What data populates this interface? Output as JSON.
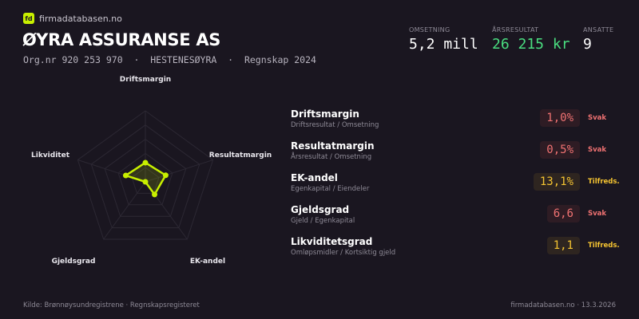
{
  "brand": {
    "logo": "fd",
    "site": "firmadatabasen.no"
  },
  "company": {
    "name": "ØYRA ASSURANSE AS",
    "subtitle": "Org.nr 920 253 970  ·  HESTENESØYRA  ·  Regnskap 2024"
  },
  "kpis": [
    {
      "label": "OMSETNING",
      "value": "5,2 mill",
      "color": "#ffffff"
    },
    {
      "label": "ÅRSRESULTAT",
      "value": "26 215 kr",
      "color": "#4ade80"
    },
    {
      "label": "ANSATTE",
      "value": "9",
      "color": "#ffffff"
    }
  ],
  "chart_data": {
    "type": "radar",
    "axes": [
      "Driftsmargin",
      "Resultatmargin",
      "EK-andel",
      "Gjeldsgrad",
      "Likviditet"
    ],
    "values": [
      0.27,
      0.3,
      0.22,
      0.0,
      0.29
    ],
    "range": [
      0,
      1
    ],
    "rings": 5,
    "color": "#c8f000"
  },
  "ratios": [
    {
      "name": "Driftsmargin",
      "formula": "Driftsresultat / Omsetning",
      "value": "1,0%",
      "status": "Svak",
      "color": "#f07272",
      "bg": "#2e1c24"
    },
    {
      "name": "Resultatmargin",
      "formula": "Årsresultat / Omsetning",
      "value": "0,5%",
      "status": "Svak",
      "color": "#f07272",
      "bg": "#2e1c24"
    },
    {
      "name": "EK-andel",
      "formula": "Egenkapital / Eiendeler",
      "value": "13,1%",
      "status": "Tilfreds.",
      "color": "#f5c431",
      "bg": "#2e2520"
    },
    {
      "name": "Gjeldsgrad",
      "formula": "Gjeld / Egenkapital",
      "value": "6,6",
      "status": "Svak",
      "color": "#f07272",
      "bg": "#2e1c24"
    },
    {
      "name": "Likviditetsgrad",
      "formula": "Omløpsmidler / Kortsiktig gjeld",
      "value": "1,1",
      "status": "Tilfreds.",
      "color": "#f5c431",
      "bg": "#2e2520"
    }
  ],
  "footer": {
    "source": "Kilde: Brønnøysundregistrene · Regnskapsregisteret",
    "right": "firmadatabasen.no · 13.3.2026"
  }
}
